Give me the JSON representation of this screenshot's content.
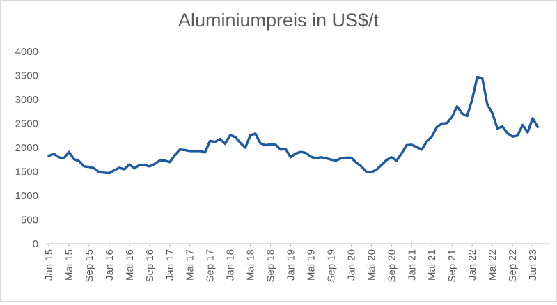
{
  "chart_data": {
    "type": "line",
    "title": "Aluminiumpreis in US$/t",
    "categories": [
      "Jan 15",
      null,
      null,
      null,
      "Mai 15",
      null,
      null,
      null,
      "Sep 15",
      null,
      null,
      null,
      "Jan 16",
      null,
      null,
      null,
      "Mai 16",
      null,
      null,
      null,
      "Sep 16",
      null,
      null,
      null,
      "Jan 17",
      null,
      null,
      null,
      "Mai 17",
      null,
      null,
      null,
      "Sep 17",
      null,
      null,
      null,
      "Jan 18",
      null,
      null,
      null,
      "Mai 18",
      null,
      null,
      null,
      "Sep 18",
      null,
      null,
      null,
      "Jan 19",
      null,
      null,
      null,
      "Mai 19",
      null,
      null,
      null,
      "Sep 19",
      null,
      null,
      null,
      "Jan 20",
      null,
      null,
      null,
      "Mai 20",
      null,
      null,
      null,
      "Sep 20",
      null,
      null,
      null,
      "Jan 21",
      null,
      null,
      null,
      "Mai 21",
      null,
      null,
      null,
      "Sep 21",
      null,
      null,
      null,
      "Jan 22",
      null,
      null,
      null,
      "Mai 22",
      null,
      null,
      null,
      "Sep 22",
      null,
      null,
      null,
      "Jan 23",
      null
    ],
    "series": [
      {
        "color": "#1f5aa0",
        "values": [
          1830,
          1870,
          1800,
          1780,
          1910,
          1760,
          1720,
          1610,
          1600,
          1570,
          1490,
          1480,
          1470,
          1530,
          1580,
          1550,
          1650,
          1570,
          1640,
          1640,
          1610,
          1660,
          1730,
          1730,
          1700,
          1840,
          1960,
          1950,
          1930,
          1930,
          1930,
          1900,
          2140,
          2120,
          2180,
          2080,
          2260,
          2220,
          2100,
          2000,
          2260,
          2290,
          2090,
          2050,
          2070,
          2060,
          1960,
          1970,
          1800,
          1880,
          1910,
          1890,
          1810,
          1780,
          1800,
          1780,
          1750,
          1730,
          1780,
          1790,
          1790,
          1690,
          1610,
          1500,
          1490,
          1540,
          1640,
          1740,
          1800,
          1730,
          1880,
          2050,
          2060,
          2010,
          1960,
          2130,
          2230,
          2430,
          2500,
          2510,
          2640,
          2860,
          2710,
          2660,
          3000,
          3470,
          3450,
          2900,
          2720,
          2400,
          2440,
          2300,
          2230,
          2250,
          2470,
          2320,
          2610,
          2430
        ]
      }
    ],
    "ylim": [
      0,
      4000
    ],
    "yticks": [
      0,
      500,
      1000,
      1500,
      2000,
      2500,
      3000,
      3500,
      4000
    ],
    "grid": false
  }
}
